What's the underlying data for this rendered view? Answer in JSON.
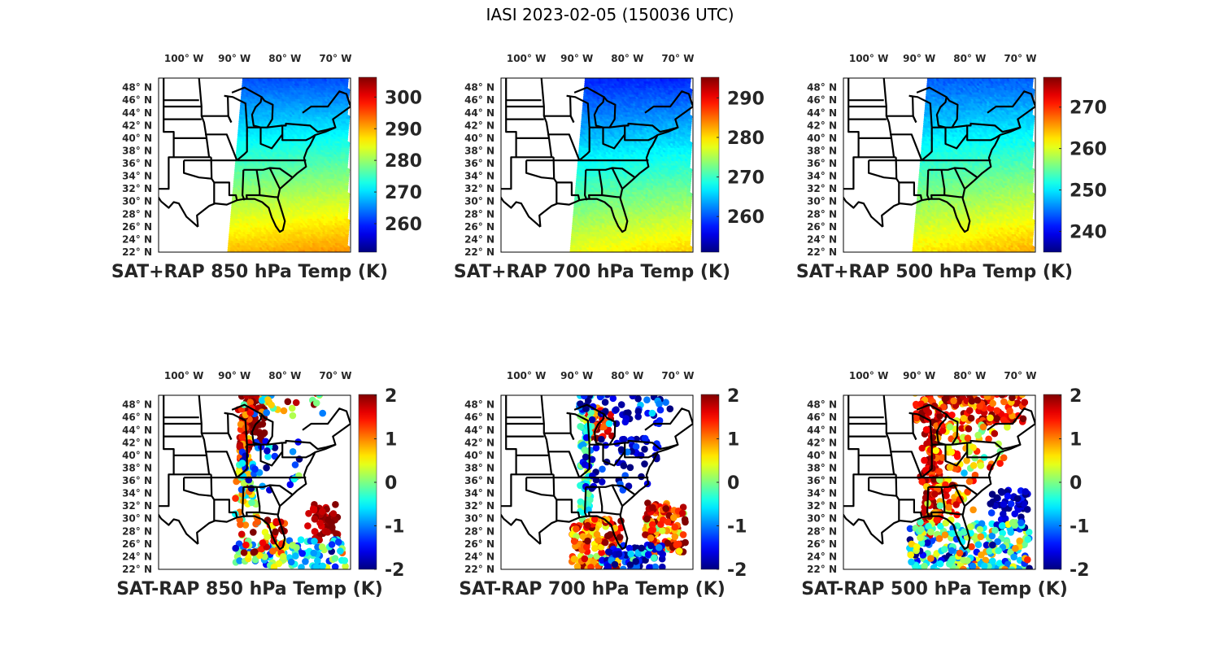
{
  "figure": {
    "title": "IASI 2023-02-05 (150036 UTC)"
  },
  "chart_data": [
    {
      "type": "scatter",
      "title": "SAT+RAP 850 hPa Temp (K)",
      "map_extent": {
        "lon": [
          -105,
          -67
        ],
        "lat": [
          22,
          49.5
        ]
      },
      "xticks": [
        {
          "value": -100,
          "label": "100° W"
        },
        {
          "value": -90,
          "label": "90° W"
        },
        {
          "value": -80,
          "label": "80° W"
        },
        {
          "value": -70,
          "label": "70° W"
        }
      ],
      "yticks": [
        22,
        24,
        26,
        28,
        30,
        32,
        34,
        36,
        38,
        40,
        42,
        44,
        46,
        48
      ],
      "ytick_suffix": "N",
      "colorbar": {
        "colormap": "jet",
        "range": [
          251,
          306
        ],
        "ticks": [
          260,
          270,
          280,
          290,
          300
        ]
      },
      "field": {
        "kind": "smooth",
        "north_value": 262,
        "south_value": 289,
        "swath_west_lon_north": -88,
        "swath_west_lon_south": -91,
        "swath_east_lon": -67.5
      }
    },
    {
      "type": "scatter",
      "title": "SAT+RAP 700 hPa Temp (K)",
      "map_extent": {
        "lon": [
          -105,
          -67
        ],
        "lat": [
          22,
          49.5
        ]
      },
      "xticks": [
        {
          "value": -100,
          "label": "100° W"
        },
        {
          "value": -90,
          "label": "90° W"
        },
        {
          "value": -80,
          "label": "80° W"
        },
        {
          "value": -70,
          "label": "70° W"
        }
      ],
      "yticks": [
        22,
        24,
        26,
        28,
        30,
        32,
        34,
        36,
        38,
        40,
        42,
        44,
        46,
        48
      ],
      "ytick_suffix": "N",
      "colorbar": {
        "colormap": "jet",
        "range": [
          251,
          295
        ],
        "ticks": [
          260,
          270,
          280,
          290
        ]
      },
      "field": {
        "kind": "smooth",
        "north_value": 258,
        "south_value": 278,
        "swath_west_lon_north": -88,
        "swath_west_lon_south": -91,
        "swath_east_lon": -67.5
      }
    },
    {
      "type": "scatter",
      "title": "SAT+RAP 500 hPa Temp (K)",
      "map_extent": {
        "lon": [
          -105,
          -67
        ],
        "lat": [
          22,
          49.5
        ]
      },
      "xticks": [
        {
          "value": -100,
          "label": "100° W"
        },
        {
          "value": -90,
          "label": "90° W"
        },
        {
          "value": -80,
          "label": "80° W"
        },
        {
          "value": -70,
          "label": "70° W"
        }
      ],
      "yticks": [
        22,
        24,
        26,
        28,
        30,
        32,
        34,
        36,
        38,
        40,
        42,
        44,
        46,
        48
      ],
      "ytick_suffix": "N",
      "colorbar": {
        "colormap": "jet",
        "range": [
          235,
          277
        ],
        "ticks": [
          240,
          250,
          260,
          270
        ]
      },
      "field": {
        "kind": "smooth",
        "north_value": 244,
        "south_value": 262,
        "swath_west_lon_north": -88,
        "swath_west_lon_south": -91,
        "swath_east_lon": -67.5
      }
    },
    {
      "type": "scatter",
      "title": "SAT-RAP 850 hPa Temp (K)",
      "map_extent": {
        "lon": [
          -105,
          -67
        ],
        "lat": [
          22,
          49.5
        ]
      },
      "xticks": [
        {
          "value": -100,
          "label": "100° W"
        },
        {
          "value": -90,
          "label": "90° W"
        },
        {
          "value": -80,
          "label": "80° W"
        },
        {
          "value": -70,
          "label": "70° W"
        }
      ],
      "yticks": [
        22,
        24,
        26,
        28,
        30,
        32,
        34,
        36,
        38,
        40,
        42,
        44,
        46,
        48
      ],
      "ytick_suffix": "N",
      "colorbar": {
        "colormap": "jet",
        "range": [
          -2,
          2
        ],
        "ticks": [
          -2,
          -1,
          0,
          1,
          2
        ]
      },
      "field": {
        "kind": "points",
        "seed": 11,
        "clusters": [
          {
            "lon": -86.5,
            "lat": 45.5,
            "w": 2.5,
            "h": 4,
            "n": 60,
            "mean": 2.0,
            "spread": 0.3
          },
          {
            "lon": -88.2,
            "lat": 40.5,
            "w": 1.2,
            "h": 7,
            "n": 70,
            "mean": 1.3,
            "spread": 0.7
          },
          {
            "lon": -87.5,
            "lat": 33.5,
            "w": 2.5,
            "h": 5,
            "n": 40,
            "mean": 0.3,
            "spread": 1.0
          },
          {
            "lon": -80.5,
            "lat": 48,
            "w": 8,
            "h": 1.8,
            "n": 30,
            "mean": 0.5,
            "spread": 1.8
          },
          {
            "lon": -83,
            "lat": 38.5,
            "w": 6,
            "h": 4,
            "n": 35,
            "mean": -1.2,
            "spread": 1.0
          },
          {
            "lon": -72.5,
            "lat": 29.5,
            "w": 3,
            "h": 3,
            "n": 55,
            "mean": 1.9,
            "spread": 0.4
          },
          {
            "lon": -79,
            "lat": 24.5,
            "w": 11,
            "h": 2.2,
            "n": 110,
            "mean": -0.6,
            "spread": 1.1
          },
          {
            "lon": -84.5,
            "lat": 27,
            "w": 5,
            "h": 3,
            "n": 45,
            "mean": 1.2,
            "spread": 1.0
          }
        ]
      }
    },
    {
      "type": "scatter",
      "title": "SAT-RAP 700 hPa Temp (K)",
      "map_extent": {
        "lon": [
          -105,
          -67
        ],
        "lat": [
          22,
          49.5
        ]
      },
      "xticks": [
        {
          "value": -100,
          "label": "100° W"
        },
        {
          "value": -90,
          "label": "90° W"
        },
        {
          "value": -80,
          "label": "80° W"
        },
        {
          "value": -70,
          "label": "70° W"
        }
      ],
      "yticks": [
        22,
        24,
        26,
        28,
        30,
        32,
        34,
        36,
        38,
        40,
        42,
        44,
        46,
        48
      ],
      "ytick_suffix": "N",
      "colorbar": {
        "colormap": "jet",
        "range": [
          -2,
          2
        ],
        "ticks": [
          -2,
          -1,
          0,
          1,
          2
        ]
      },
      "field": {
        "kind": "points",
        "seed": 23,
        "clusters": [
          {
            "lon": -85.5,
            "lat": 45,
            "w": 2.5,
            "h": 2.5,
            "n": 45,
            "mean": 1.5,
            "spread": 0.6
          },
          {
            "lon": -88.2,
            "lat": 39,
            "w": 1.2,
            "h": 8,
            "n": 70,
            "mean": -0.3,
            "spread": 0.6
          },
          {
            "lon": -80.5,
            "lat": 47.5,
            "w": 9,
            "h": 2.5,
            "n": 55,
            "mean": -1.6,
            "spread": 0.8
          },
          {
            "lon": -81,
            "lat": 38.5,
            "w": 8,
            "h": 4.5,
            "n": 55,
            "mean": -1.7,
            "spread": 0.6
          },
          {
            "lon": -86,
            "lat": 26,
            "w": 5,
            "h": 4,
            "n": 150,
            "mean": 1.2,
            "spread": 1.0
          },
          {
            "lon": -72.5,
            "lat": 28.5,
            "w": 4,
            "h": 4,
            "n": 120,
            "mean": 1.3,
            "spread": 1.0
          },
          {
            "lon": -79,
            "lat": 24,
            "w": 6,
            "h": 2,
            "n": 80,
            "mean": -1.3,
            "spread": 0.9
          }
        ]
      }
    },
    {
      "type": "scatter",
      "title": "SAT-RAP 500 hPa Temp (K)",
      "map_extent": {
        "lon": [
          -105,
          -67
        ],
        "lat": [
          22,
          49.5
        ]
      },
      "xticks": [
        {
          "value": -100,
          "label": "100° W"
        },
        {
          "value": -90,
          "label": "90° W"
        },
        {
          "value": -80,
          "label": "80° W"
        },
        {
          "value": -70,
          "label": "70° W"
        }
      ],
      "yticks": [
        22,
        24,
        26,
        28,
        30,
        32,
        34,
        36,
        38,
        40,
        42,
        44,
        46,
        48
      ],
      "ytick_suffix": "N",
      "colorbar": {
        "colormap": "jet",
        "range": [
          -2,
          2
        ],
        "ticks": [
          -2,
          -1,
          0,
          1,
          2
        ]
      },
      "field": {
        "kind": "points",
        "seed": 37,
        "clusters": [
          {
            "lon": -80,
            "lat": 47.5,
            "w": 11,
            "h": 2.5,
            "n": 130,
            "mean": 1.5,
            "spread": 0.7
          },
          {
            "lon": -87.8,
            "lat": 38,
            "w": 2,
            "h": 10,
            "n": 110,
            "mean": 1.8,
            "spread": 0.4
          },
          {
            "lon": -84.5,
            "lat": 41,
            "w": 4,
            "h": 4,
            "n": 40,
            "mean": 1.2,
            "spread": 0.8
          },
          {
            "lon": -78,
            "lat": 41.5,
            "w": 6,
            "h": 5,
            "n": 45,
            "mean": 0.8,
            "spread": 1.0
          },
          {
            "lon": -72,
            "lat": 31.5,
            "w": 4,
            "h": 3,
            "n": 60,
            "mean": -1.8,
            "spread": 0.5
          },
          {
            "lon": -80,
            "lat": 25.5,
            "w": 12,
            "h": 4,
            "n": 260,
            "mean": -0.3,
            "spread": 1.4
          },
          {
            "lon": -84,
            "lat": 33,
            "w": 5,
            "h": 3.5,
            "n": 50,
            "mean": 1.0,
            "spread": 1.0
          }
        ]
      }
    }
  ]
}
